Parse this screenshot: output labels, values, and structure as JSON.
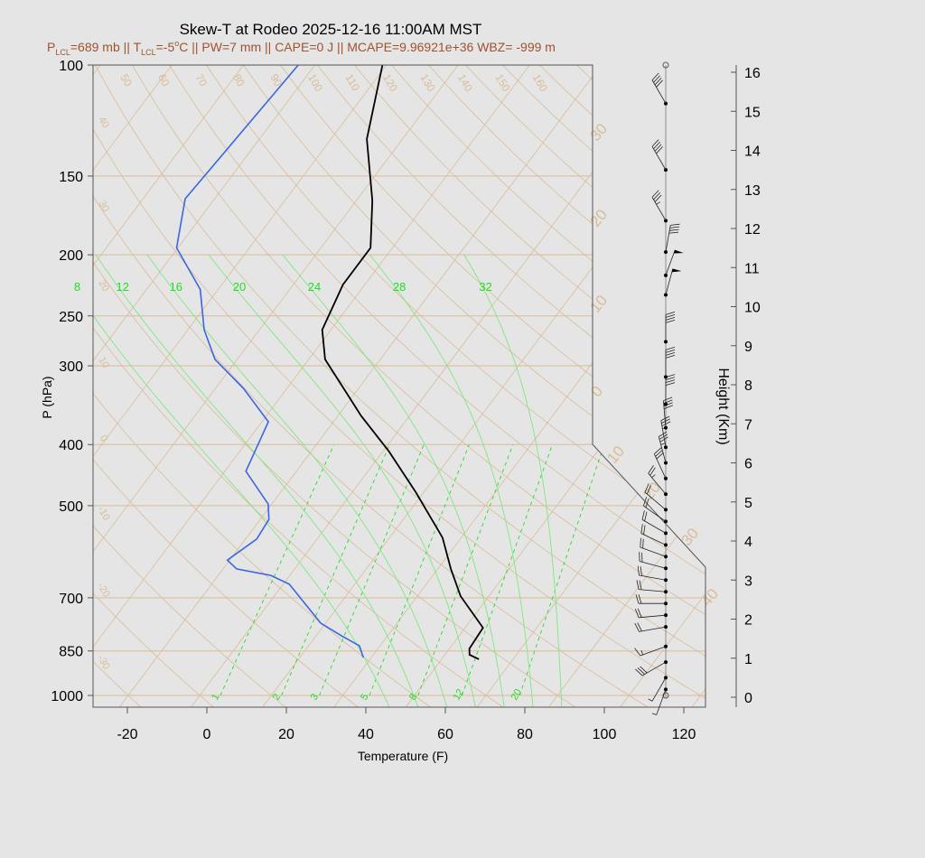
{
  "chart_data": {
    "type": "line",
    "title": "Skew-T at Rodeo 2025-12-16 11:00AM MST",
    "subtitle_parts": {
      "plcl_label": "P",
      "plcl_sub": "LCL",
      "plcl_value": "=689 mb || T",
      "tlcl_sub": "LCL",
      "tlcl_value": "=-5",
      "deg": "o",
      "rest": "C || PW=7 mm || CAPE=0 J || MCAPE=9.96921e+36 WBZ= -999 m"
    },
    "xlabel": "Temperature (F)",
    "ylabel": "P (hPa)",
    "y2label": "Height (Km)",
    "x_ticks": [
      "-20",
      "0",
      "20",
      "40",
      "60",
      "80",
      "100",
      "120"
    ],
    "x_tick_values": [
      -20,
      0,
      20,
      40,
      60,
      80,
      100,
      120
    ],
    "y_ticks": [
      "100",
      "150",
      "200",
      "250",
      "300",
      "400",
      "500",
      "700",
      "850",
      "1000"
    ],
    "y_tick_values": [
      100,
      150,
      200,
      250,
      300,
      400,
      500,
      700,
      850,
      1000
    ],
    "y_scale": "log",
    "ylim": [
      1000,
      100
    ],
    "height_ticks": [
      "0",
      "1",
      "2",
      "3",
      "4",
      "5",
      "6",
      "7",
      "8",
      "9",
      "10",
      "11",
      "12",
      "13",
      "14",
      "15",
      "16"
    ],
    "isotherm_labels_left": [
      "40",
      "30",
      "20",
      "10",
      "0",
      "-10",
      "-20",
      "-30"
    ],
    "isotherm_labels_right": [
      "30",
      "20",
      "10",
      "0",
      "10",
      "20",
      "30",
      "40"
    ],
    "adiabat_labels_top": [
      "50",
      "60",
      "70",
      "80",
      "90",
      "100",
      "110",
      "120",
      "130",
      "140",
      "150",
      "160"
    ],
    "moist_adiabat_labels": [
      "8",
      "12",
      "16",
      "20",
      "24",
      "28",
      "32"
    ],
    "mixing_ratio_labels": [
      "1",
      "2",
      "3",
      "5",
      "8",
      "12",
      "20"
    ],
    "series": [
      {
        "color": "#000000",
        "points": [
          [
            876,
            59.4
          ],
          [
            862,
            56.2
          ],
          [
            843,
            55.0
          ],
          [
            781,
            54.5
          ],
          [
            696,
            42.9
          ],
          [
            630,
            35.3
          ],
          [
            562,
            27.3
          ],
          [
            476,
            12.0
          ],
          [
            410,
            -2.5
          ],
          [
            360,
            -16.2
          ],
          [
            293,
            -35.9
          ],
          [
            263,
            -42.2
          ],
          [
            223,
            -45.5
          ],
          [
            195,
            -45.5
          ],
          [
            164,
            -54
          ],
          [
            131,
            -67
          ],
          [
            100,
            -77
          ]
        ]
      },
      {
        "color": "#3b66e0",
        "points": [
          [
            871,
            30.0
          ],
          [
            834,
            26.8
          ],
          [
            807,
            21.0
          ],
          [
            768,
            12.8
          ],
          [
            666,
            -2.5
          ],
          [
            645,
            -8.8
          ],
          [
            630,
            -18.6
          ],
          [
            610,
            -22.6
          ],
          [
            565,
            -19.2
          ],
          [
            526,
            -19.8
          ],
          [
            497,
            -22.9
          ],
          [
            441,
            -34.7
          ],
          [
            368,
            -38.4
          ],
          [
            326,
            -50.9
          ],
          [
            293,
            -63.6
          ],
          [
            263,
            -71.9
          ],
          [
            227,
            -80.5
          ],
          [
            195,
            -94.3
          ],
          [
            163,
            -101.4
          ],
          [
            100,
            -98.2
          ]
        ]
      }
    ],
    "wind_barbs": [
      [
        0.2,
        200,
        5
      ],
      [
        0.5,
        210,
        5
      ],
      [
        0.9,
        240,
        30
      ],
      [
        1.3,
        250,
        15
      ],
      [
        1.8,
        260,
        20
      ],
      [
        2.1,
        265,
        20
      ],
      [
        2.4,
        270,
        20
      ],
      [
        2.7,
        275,
        20
      ],
      [
        3.0,
        280,
        20
      ],
      [
        3.3,
        285,
        20
      ],
      [
        3.6,
        290,
        20
      ],
      [
        3.9,
        295,
        20
      ],
      [
        4.2,
        300,
        20
      ],
      [
        4.5,
        305,
        20
      ],
      [
        4.8,
        310,
        20
      ],
      [
        5.2,
        320,
        25
      ],
      [
        5.6,
        335,
        30
      ],
      [
        6.0,
        345,
        35
      ],
      [
        6.4,
        350,
        35
      ],
      [
        6.9,
        355,
        40
      ],
      [
        7.5,
        0,
        40
      ],
      [
        8.2,
        0,
        40
      ],
      [
        9.1,
        0,
        40
      ],
      [
        10.3,
        15,
        50
      ],
      [
        10.8,
        20,
        50
      ],
      [
        11.4,
        10,
        40
      ],
      [
        12.2,
        330,
        35
      ],
      [
        13.5,
        330,
        40
      ],
      [
        15.2,
        330,
        40
      ]
    ],
    "colors": {
      "temperature": "#000000",
      "dewpoint": "#3b66e0",
      "grid": "#d9bc98",
      "moist": "#7ee87e",
      "mixing": "#22dd22",
      "subtitle": "#a0522d"
    }
  }
}
